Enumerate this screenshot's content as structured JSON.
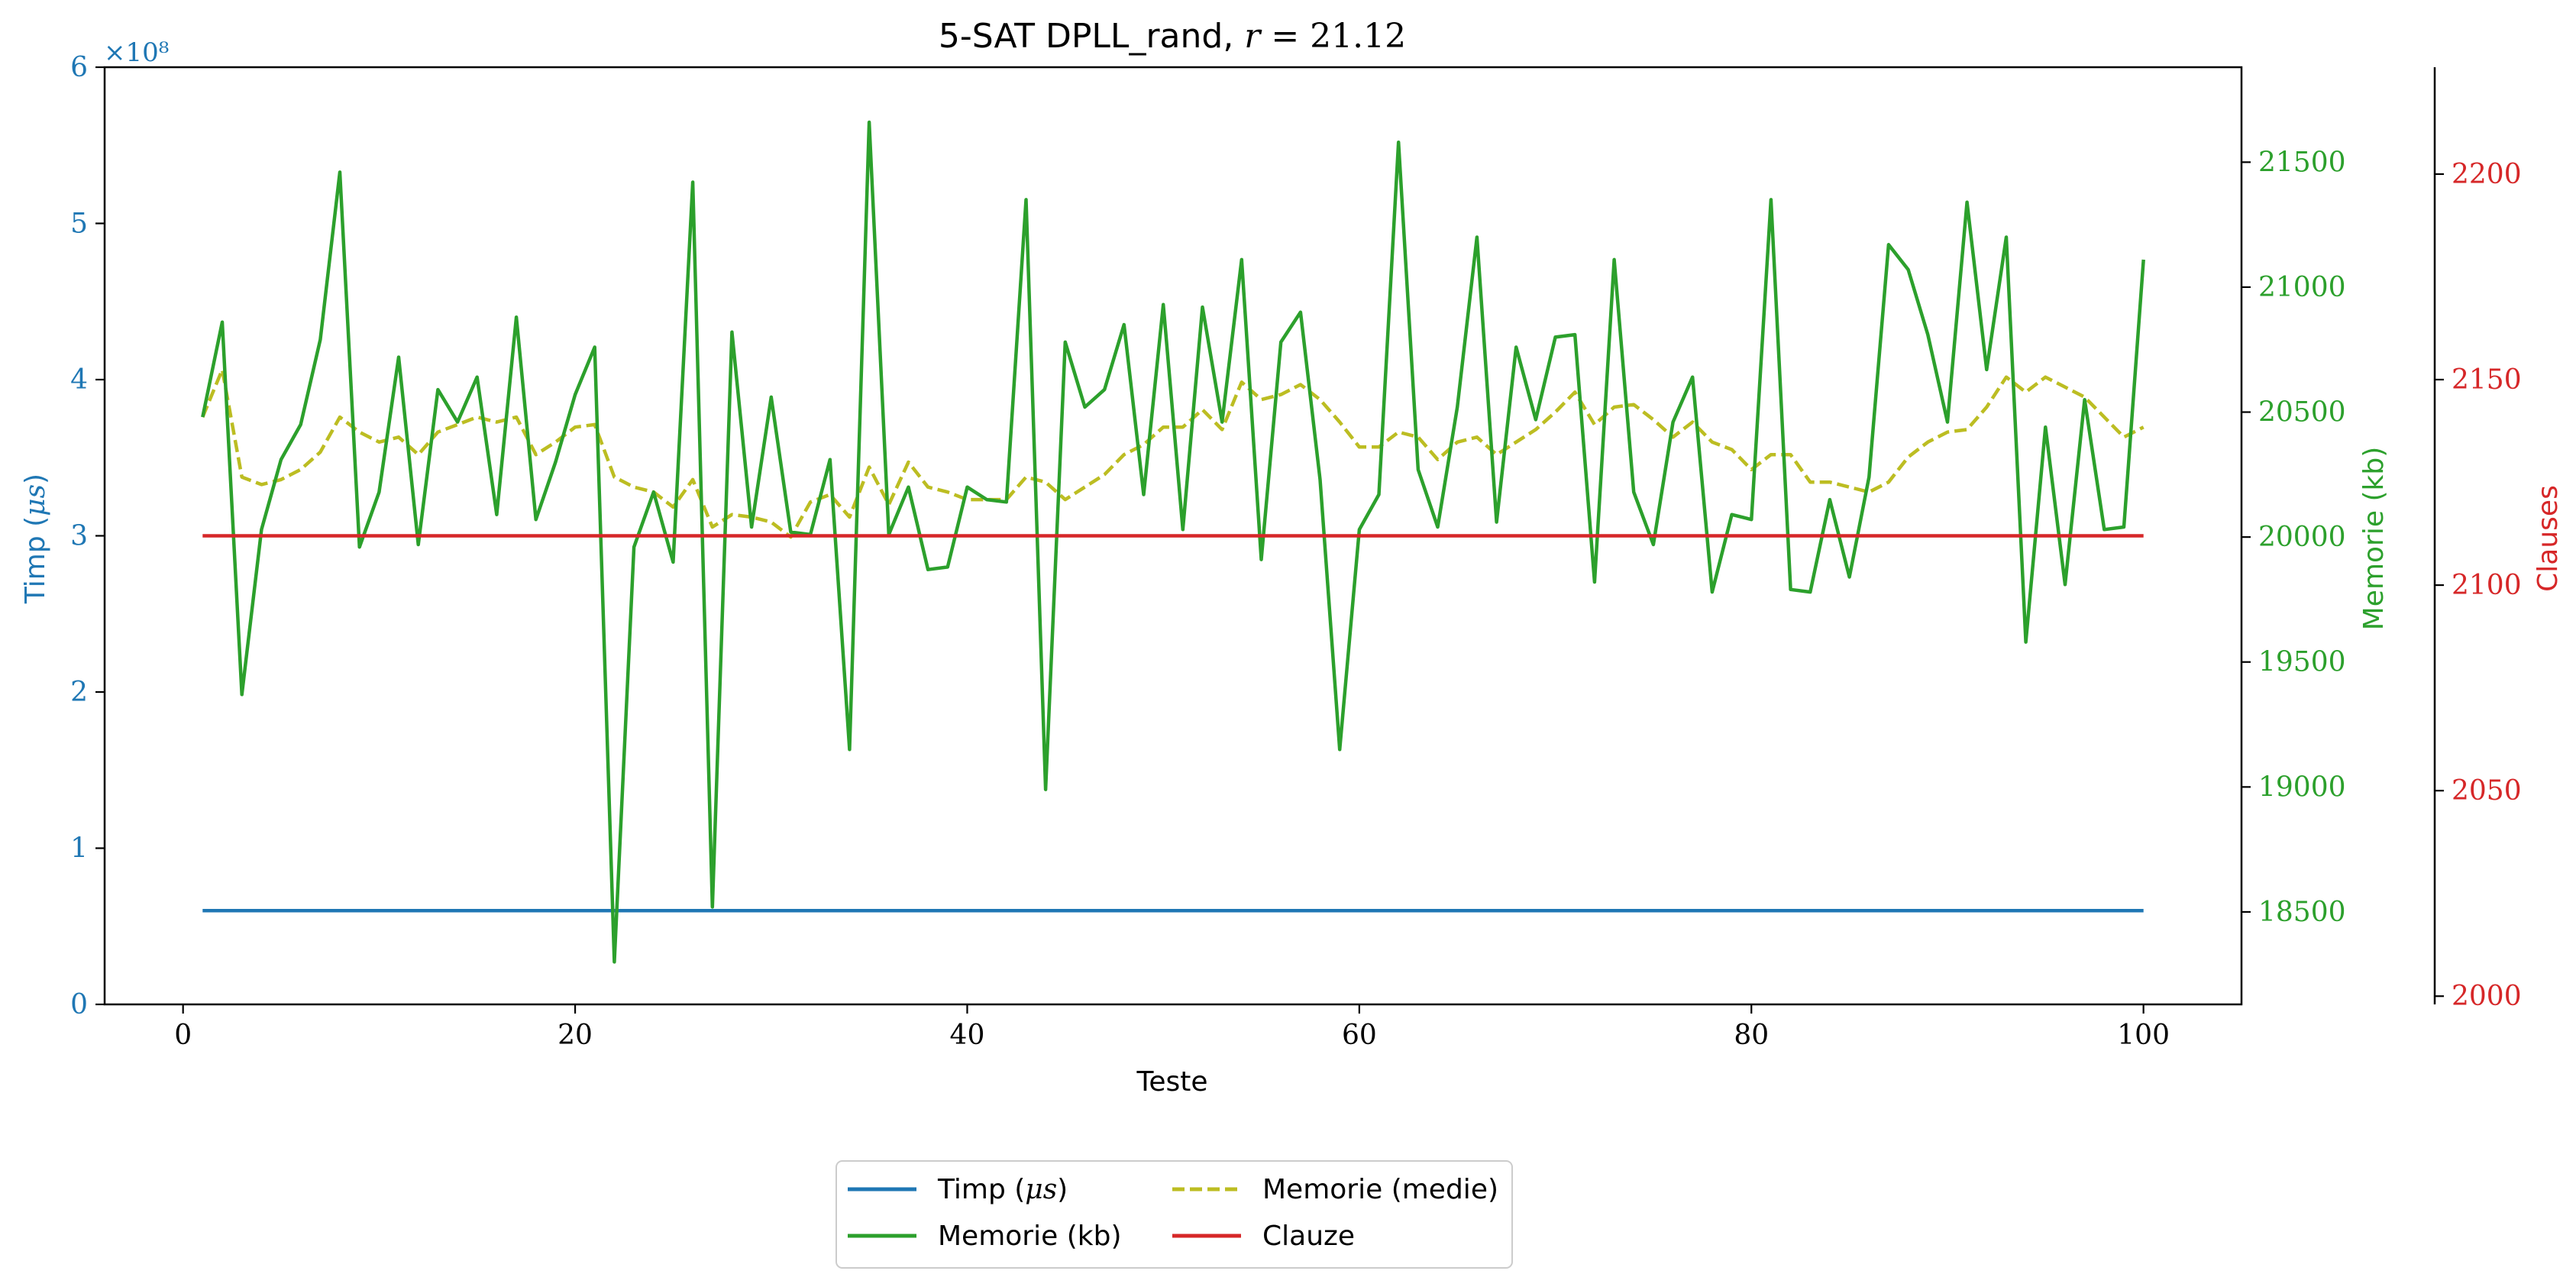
{
  "chart_data": {
    "type": "line",
    "title": "5-SAT DPLL_rand, r = 21.12",
    "title_parts": {
      "main": "5-SAT DPLL_rand, ",
      "var": "r",
      "rest": " = 21.12"
    },
    "xlabel": "Teste",
    "xlim": [
      -4,
      105
    ],
    "xticks": [
      0,
      20,
      40,
      60,
      80,
      100
    ],
    "xtick_labels": [
      "0",
      "20",
      "40",
      "60",
      "80",
      "100"
    ],
    "axes": {
      "left": {
        "label": "Timp (μs)",
        "color": "#1f77b4",
        "ylim": [
          0,
          6
        ],
        "ticks": [
          0,
          1,
          2,
          3,
          4,
          5,
          6
        ],
        "tick_labels": [
          "0",
          "1",
          "2",
          "3",
          "4",
          "5",
          "6"
        ],
        "multiplier": "×10⁸"
      },
      "right1": {
        "label": "Memorie (kb)",
        "color": "#2ca02c",
        "ylim": [
          18130,
          21880
        ],
        "ticks": [
          18500,
          19000,
          19500,
          20000,
          20500,
          21000,
          21500
        ],
        "tick_labels": [
          "18500",
          "19000",
          "19500",
          "20000",
          "20500",
          "21000",
          "21500"
        ]
      },
      "right2": {
        "label": "Clauses",
        "color": "#d62728",
        "ylim": [
          1998,
          2226
        ],
        "ticks": [
          2000,
          2050,
          2100,
          2150,
          2200
        ],
        "tick_labels": [
          "2000",
          "2050",
          "2100",
          "2150",
          "2200"
        ]
      }
    },
    "x": [
      1,
      2,
      3,
      4,
      5,
      6,
      7,
      8,
      9,
      10,
      11,
      12,
      13,
      14,
      15,
      16,
      17,
      18,
      19,
      20,
      21,
      22,
      23,
      24,
      25,
      26,
      27,
      28,
      29,
      30,
      31,
      32,
      33,
      34,
      35,
      36,
      37,
      38,
      39,
      40,
      41,
      42,
      43,
      44,
      45,
      46,
      47,
      48,
      49,
      50,
      51,
      52,
      53,
      54,
      55,
      56,
      57,
      58,
      59,
      60,
      61,
      62,
      63,
      64,
      65,
      66,
      67,
      68,
      69,
      70,
      71,
      72,
      73,
      74,
      75,
      76,
      77,
      78,
      79,
      80,
      81,
      82,
      83,
      84,
      85,
      86,
      87,
      88,
      89,
      90,
      91,
      92,
      93,
      94,
      95,
      96,
      97,
      98,
      99,
      100
    ],
    "series": [
      {
        "name": "Timp (μs)",
        "axis": "left",
        "color": "#1f77b4",
        "style": "solid",
        "values": [
          0.6,
          0.6,
          0.6,
          0.6,
          0.6,
          0.6,
          0.6,
          0.6,
          0.6,
          0.6,
          0.6,
          0.6,
          0.6,
          0.6,
          0.6,
          0.6,
          0.6,
          0.6,
          0.6,
          0.6,
          0.6,
          0.6,
          0.6,
          0.6,
          0.6,
          0.6,
          0.6,
          0.6,
          0.6,
          0.6,
          0.6,
          0.6,
          0.6,
          0.6,
          0.6,
          0.6,
          0.6,
          0.6,
          0.6,
          0.6,
          0.6,
          0.6,
          0.6,
          0.6,
          0.6,
          0.6,
          0.6,
          0.6,
          0.6,
          0.6,
          0.6,
          0.6,
          0.6,
          0.6,
          0.6,
          0.6,
          0.6,
          0.6,
          0.6,
          0.6,
          0.6,
          0.6,
          0.6,
          0.6,
          0.6,
          0.6,
          0.6,
          0.6,
          0.6,
          0.6,
          0.6,
          0.6,
          0.6,
          0.6,
          0.6,
          0.6,
          0.6,
          0.6,
          0.6,
          0.6,
          0.6,
          0.6,
          0.6,
          0.6,
          0.6,
          0.6,
          0.6,
          0.6,
          0.6,
          0.6,
          0.6,
          0.6,
          0.6,
          0.6,
          0.6,
          0.6,
          0.6,
          0.6,
          0.6,
          0.6
        ]
      },
      {
        "name": "Memorie (kb)",
        "axis": "right1",
        "color": "#2ca02c",
        "style": "solid",
        "values": [
          20480,
          20860,
          19370,
          20030,
          20310,
          20450,
          20790,
          21460,
          19960,
          20180,
          20720,
          19970,
          20590,
          20460,
          20640,
          20090,
          20880,
          20070,
          20300,
          20570,
          20760,
          18300,
          19960,
          20180,
          19900,
          21420,
          18520,
          20820,
          20040,
          20560,
          20020,
          20010,
          20310,
          19150,
          21660,
          20010,
          20200,
          19870,
          19880,
          20200,
          20150,
          20140,
          21350,
          18990,
          20780,
          20520,
          20590,
          20850,
          20170,
          20930,
          20030,
          20920,
          20460,
          21110,
          19910,
          20780,
          20900,
          20230,
          19150,
          20030,
          20170,
          21580,
          20270,
          20040,
          20520,
          21200,
          20060,
          20760,
          20470,
          20800,
          20810,
          19820,
          21110,
          20180,
          19970,
          20460,
          20640,
          19780,
          20090,
          20070,
          21350,
          19790,
          19780,
          20150,
          19840,
          20240,
          21170,
          21070,
          20810,
          20460,
          21340,
          20670,
          21200,
          19580,
          20440,
          19810,
          20550,
          20030,
          20040,
          21110
        ]
      },
      {
        "name": "Memorie (medie)",
        "axis": "right1",
        "color": "#bcbd22",
        "style": "dashed",
        "values": [
          20480,
          20670,
          20240,
          20210,
          20230,
          20270,
          20340,
          20480,
          20420,
          20380,
          20400,
          20330,
          20420,
          20450,
          20480,
          20460,
          20480,
          20330,
          20380,
          20440,
          20450,
          20240,
          20200,
          20180,
          20120,
          20230,
          20040,
          20090,
          20080,
          20060,
          20000,
          20140,
          20170,
          20080,
          20280,
          20130,
          20300,
          20200,
          20180,
          20150,
          20150,
          20150,
          20240,
          20220,
          20150,
          20200,
          20250,
          20330,
          20370,
          20440,
          20440,
          20510,
          20430,
          20620,
          20550,
          20570,
          20610,
          20550,
          20460,
          20360,
          20360,
          20420,
          20400,
          20310,
          20380,
          20400,
          20330,
          20380,
          20430,
          20500,
          20580,
          20450,
          20520,
          20530,
          20470,
          20400,
          20460,
          20380,
          20350,
          20270,
          20330,
          20330,
          20220,
          20220,
          20200,
          20180,
          20220,
          20320,
          20380,
          20420,
          20430,
          20520,
          20640,
          20580,
          20640,
          20600,
          20560,
          20480,
          20400,
          20440
        ]
      },
      {
        "name": "Clauze",
        "axis": "right2",
        "color": "#d62728",
        "style": "solid",
        "values": [
          2112,
          2112,
          2112,
          2112,
          2112,
          2112,
          2112,
          2112,
          2112,
          2112,
          2112,
          2112,
          2112,
          2112,
          2112,
          2112,
          2112,
          2112,
          2112,
          2112,
          2112,
          2112,
          2112,
          2112,
          2112,
          2112,
          2112,
          2112,
          2112,
          2112,
          2112,
          2112,
          2112,
          2112,
          2112,
          2112,
          2112,
          2112,
          2112,
          2112,
          2112,
          2112,
          2112,
          2112,
          2112,
          2112,
          2112,
          2112,
          2112,
          2112,
          2112,
          2112,
          2112,
          2112,
          2112,
          2112,
          2112,
          2112,
          2112,
          2112,
          2112,
          2112,
          2112,
          2112,
          2112,
          2112,
          2112,
          2112,
          2112,
          2112,
          2112,
          2112,
          2112,
          2112,
          2112,
          2112,
          2112,
          2112,
          2112,
          2112,
          2112,
          2112,
          2112,
          2112,
          2112,
          2112,
          2112,
          2112,
          2112,
          2112,
          2112,
          2112,
          2112,
          2112,
          2112,
          2112,
          2112,
          2112,
          2112,
          2112
        ]
      }
    ],
    "legend": {
      "placement": "below-center",
      "entries": [
        {
          "label_main": "Timp (",
          "label_var": "μs",
          "label_end": ")",
          "color": "#1f77b4",
          "style": "solid"
        },
        {
          "label_main": "Memorie (medie)",
          "label_var": "",
          "label_end": "",
          "color": "#bcbd22",
          "style": "dashed"
        },
        {
          "label_main": "Memorie (kb)",
          "label_var": "",
          "label_end": "",
          "color": "#2ca02c",
          "style": "solid"
        },
        {
          "label_main": "Clauze",
          "label_var": "",
          "label_end": "",
          "color": "#d62728",
          "style": "solid"
        }
      ]
    },
    "grid": false
  }
}
